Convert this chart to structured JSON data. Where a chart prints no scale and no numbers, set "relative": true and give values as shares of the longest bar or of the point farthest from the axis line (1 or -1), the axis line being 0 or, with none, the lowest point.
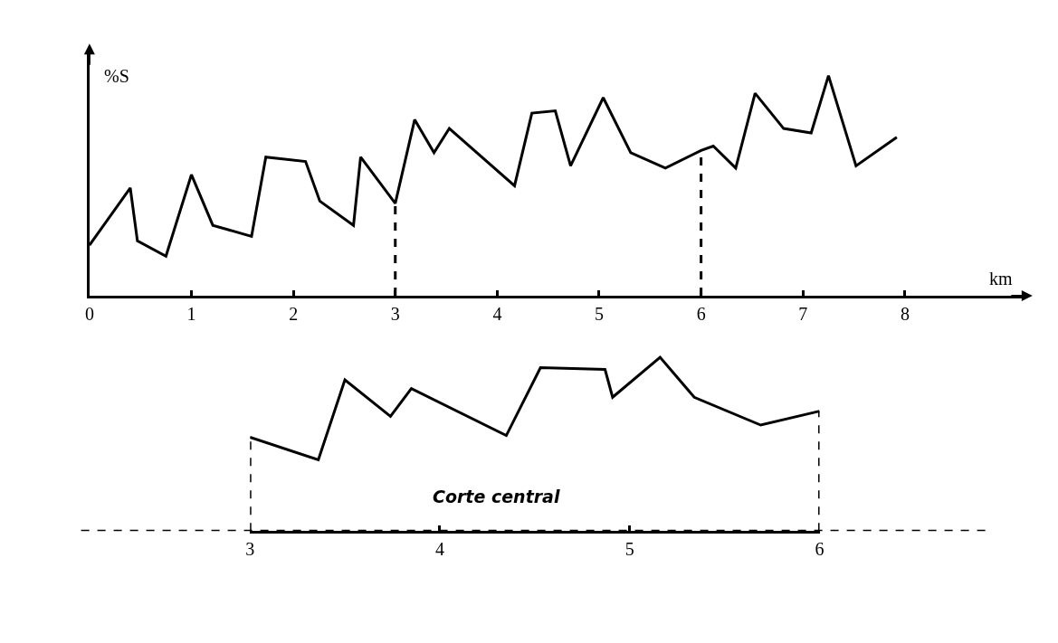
{
  "chart_data": [
    {
      "type": "line",
      "relative": true,
      "ylabel": "%S",
      "xlabel": "km",
      "xlim": [
        0,
        9.2
      ],
      "xticks": [
        0,
        1,
        2,
        3,
        4,
        5,
        6,
        7,
        8
      ],
      "tick_labels": "x",
      "marker": "none",
      "line_style": "solid",
      "x": [
        0.0,
        0.4,
        0.47,
        0.75,
        1.0,
        1.21,
        1.59,
        1.73,
        2.12,
        2.26,
        2.59,
        2.66,
        3.0,
        3.19,
        3.38,
        3.53,
        4.17,
        4.34,
        4.57,
        4.72,
        5.04,
        5.31,
        5.65,
        6.0,
        6.12,
        6.34,
        6.53,
        6.81,
        7.08,
        7.25,
        7.52,
        7.92
      ],
      "series": [
        {
          "color": "#000000",
          "values": [
            0.23,
            0.49,
            0.25,
            0.18,
            0.55,
            0.32,
            0.27,
            0.63,
            0.61,
            0.43,
            0.32,
            0.63,
            0.42,
            0.8,
            0.65,
            0.76,
            0.5,
            0.83,
            0.84,
            0.59,
            0.9,
            0.65,
            0.58,
            0.66,
            0.68,
            0.58,
            0.92,
            0.76,
            0.74,
            1.0,
            0.59,
            0.72
          ]
        }
      ],
      "ref_lines": [
        {
          "axis": "x",
          "value": 3,
          "line_style": "dashed"
        },
        {
          "axis": "x",
          "value": 6,
          "line_style": "dashed"
        }
      ]
    },
    {
      "type": "line",
      "relative": true,
      "title": "Corte central",
      "xlim": [
        3,
        6
      ],
      "xticks": [
        3,
        4,
        5,
        6
      ],
      "tick_labels": "x",
      "marker": "none",
      "line_style": "solid",
      "x": [
        3.0,
        3.36,
        3.5,
        3.74,
        3.85,
        4.35,
        4.53,
        4.87,
        4.91,
        5.16,
        5.34,
        5.69,
        6.0
      ],
      "series": [
        {
          "color": "#000000",
          "values": [
            0.54,
            0.41,
            0.87,
            0.66,
            0.82,
            0.55,
            0.94,
            0.93,
            0.77,
            1.0,
            0.77,
            0.61,
            0.69
          ]
        }
      ],
      "ref_lines": [
        {
          "axis": "x",
          "value": 3,
          "line_style": "dashed"
        },
        {
          "axis": "x",
          "value": 6,
          "line_style": "dashed"
        },
        {
          "axis": "y",
          "value": 0,
          "line_style": "dashed"
        }
      ]
    }
  ]
}
